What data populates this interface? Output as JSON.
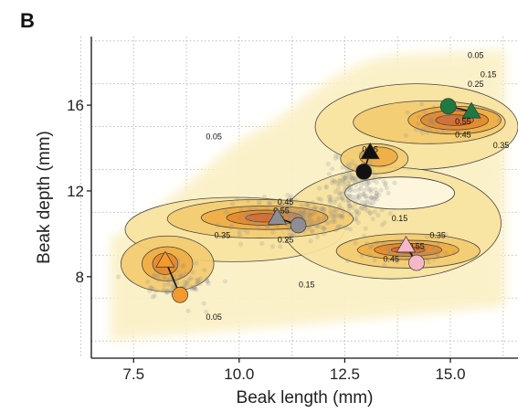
{
  "panel_label": "B",
  "chart_data": {
    "type": "contour-scatter",
    "xlabel": "Beak length (mm)",
    "ylabel": "Beak depth (mm)",
    "xlim": [
      6.5,
      16.6
    ],
    "ylim": [
      4.2,
      19.2
    ],
    "x_ticks": [
      7.5,
      10.0,
      12.5,
      15.0
    ],
    "x_tick_labels": [
      "7.5",
      "10.0",
      "12.5",
      "15.0"
    ],
    "y_ticks": [
      8,
      12,
      16
    ],
    "y_tick_labels": [
      "8",
      "12",
      "16"
    ],
    "grid": true,
    "density_fill_colors": [
      "#fbf0c6",
      "#f8e3a0",
      "#f4cd72",
      "#efae46",
      "#e88a2c",
      "#e06a24"
    ],
    "density_regions": [
      {
        "cx": 9.9,
        "cy": 10.2,
        "rx": 2.6,
        "ry": 1.5,
        "level": 0
      },
      {
        "cx": 14.2,
        "cy": 15.0,
        "rx": 2.4,
        "ry": 2.0,
        "level": 0
      },
      {
        "cx": 13.6,
        "cy": 10.5,
        "rx": 2.6,
        "ry": 2.6,
        "level": 0
      },
      {
        "cx": 10.5,
        "cy": 10.7,
        "rx": 2.2,
        "ry": 0.9,
        "level": 1
      },
      {
        "cx": 8.3,
        "cy": 8.6,
        "rx": 1.1,
        "ry": 1.3,
        "level": 1
      },
      {
        "cx": 14.0,
        "cy": 9.2,
        "rx": 1.7,
        "ry": 0.8,
        "level": 1
      },
      {
        "cx": 14.5,
        "cy": 15.2,
        "rx": 1.8,
        "ry": 1.0,
        "level": 1
      },
      {
        "cx": 13.2,
        "cy": 13.5,
        "rx": 0.8,
        "ry": 0.7,
        "level": 1
      },
      {
        "cx": 10.6,
        "cy": 10.75,
        "rx": 1.5,
        "ry": 0.55,
        "level": 2
      },
      {
        "cx": 14.0,
        "cy": 9.25,
        "rx": 1.2,
        "ry": 0.45,
        "level": 2
      },
      {
        "cx": 15.1,
        "cy": 15.3,
        "rx": 1.1,
        "ry": 0.65,
        "level": 2
      },
      {
        "cx": 8.3,
        "cy": 8.6,
        "rx": 0.6,
        "ry": 0.8,
        "level": 2
      },
      {
        "cx": 13.3,
        "cy": 13.6,
        "rx": 0.45,
        "ry": 0.45,
        "level": 2
      },
      {
        "cx": 10.6,
        "cy": 10.75,
        "rx": 0.9,
        "ry": 0.35,
        "level": 3
      },
      {
        "cx": 14.0,
        "cy": 9.25,
        "rx": 0.8,
        "ry": 0.3,
        "level": 3
      },
      {
        "cx": 15.1,
        "cy": 15.3,
        "rx": 0.8,
        "ry": 0.45,
        "level": 3
      },
      {
        "cx": 8.25,
        "cy": 8.6,
        "rx": 0.3,
        "ry": 0.5,
        "level": 3
      },
      {
        "cx": 10.6,
        "cy": 10.75,
        "rx": 0.45,
        "ry": 0.2,
        "level": 4
      },
      {
        "cx": 15.1,
        "cy": 15.3,
        "rx": 0.45,
        "ry": 0.25,
        "level": 4
      },
      {
        "cx": 14.0,
        "cy": 9.25,
        "rx": 0.4,
        "ry": 0.15,
        "level": 4
      }
    ],
    "hole_region": {
      "cx": 13.8,
      "cy": 11.9,
      "rx": 1.3,
      "ry": 0.75
    },
    "contour_labels": [
      {
        "text": "0.05",
        "x": 15.6,
        "y": 18.2
      },
      {
        "text": "0.15",
        "x": 15.9,
        "y": 17.3
      },
      {
        "text": "0.25",
        "x": 15.6,
        "y": 16.85
      },
      {
        "text": "0.05",
        "x": 9.4,
        "y": 14.4
      },
      {
        "text": "0.45",
        "x": 15.3,
        "y": 14.5
      },
      {
        "text": "0.55",
        "x": 15.3,
        "y": 15.1
      },
      {
        "text": "0.35",
        "x": 16.2,
        "y": 14.0
      },
      {
        "text": "0.45",
        "x": 13.1,
        "y": 13.8
      },
      {
        "text": "0.45",
        "x": 11.1,
        "y": 11.35
      },
      {
        "text": "0.55",
        "x": 11.0,
        "y": 10.95
      },
      {
        "text": "0.35",
        "x": 9.6,
        "y": 9.8
      },
      {
        "text": "0.25",
        "x": 11.1,
        "y": 9.6
      },
      {
        "text": "0.15",
        "x": 13.8,
        "y": 10.6
      },
      {
        "text": "0.35",
        "x": 14.7,
        "y": 9.8
      },
      {
        "text": "0.55",
        "x": 14.2,
        "y": 9.3
      },
      {
        "text": "0.45",
        "x": 13.6,
        "y": 8.7
      },
      {
        "text": "0.15",
        "x": 11.6,
        "y": 7.5
      },
      {
        "text": "0.05",
        "x": 9.4,
        "y": 6.0
      }
    ],
    "point_clouds": [
      {
        "cx": 11.4,
        "cy": 10.8,
        "sx": 1.2,
        "sy": 0.75,
        "n": 240
      },
      {
        "cx": 12.7,
        "cy": 12.1,
        "sx": 0.6,
        "sy": 1.1,
        "n": 180
      },
      {
        "cx": 8.6,
        "cy": 7.7,
        "sx": 0.7,
        "sy": 0.7,
        "n": 90
      },
      {
        "cx": 13.9,
        "cy": 9.2,
        "sx": 0.9,
        "sy": 0.5,
        "n": 60
      },
      {
        "cx": 14.8,
        "cy": 15.3,
        "sx": 0.7,
        "sy": 0.6,
        "n": 50
      }
    ],
    "point_color": "#8c8c8c",
    "series": [
      {
        "color": "#f29a2e",
        "triangle": [
          8.25,
          8.75
        ],
        "circle": [
          8.6,
          7.15
        ]
      },
      {
        "color": "#8d8d93",
        "triangle": [
          10.9,
          10.75
        ],
        "circle": [
          11.4,
          10.4
        ]
      },
      {
        "color": "#111111",
        "triangle": [
          13.1,
          13.8
        ],
        "circle": [
          12.95,
          12.9
        ]
      },
      {
        "color": "#f5b8c8",
        "triangle": [
          13.95,
          9.45
        ],
        "circle": [
          14.2,
          8.65
        ]
      },
      {
        "color": "#1f7a42",
        "triangle": [
          15.5,
          15.7
        ],
        "circle": [
          14.95,
          15.95
        ]
      }
    ]
  }
}
